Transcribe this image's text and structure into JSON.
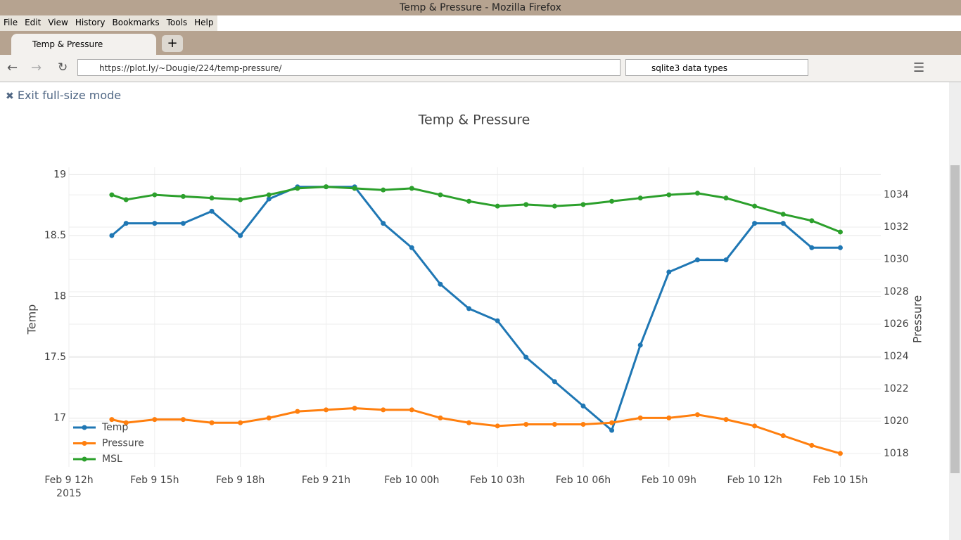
{
  "window_title": "Temp & Pressure - Mozilla Firefox",
  "menu": [
    "File",
    "Edit",
    "View",
    "History",
    "Bookmarks",
    "Tools",
    "Help"
  ],
  "tab_title": "Temp & Pressure",
  "url": "https://plot.ly/~Dougie/224/temp-pressure/",
  "search_text": "sqlite3 data types",
  "exit_link": "Exit full-size mode",
  "chart_data": {
    "type": "line",
    "title": "Temp & Pressure",
    "x_label": "",
    "y_label": "Temp",
    "y2_label": "Pressure",
    "x": [
      "2015-02-09 13:30",
      "2015-02-09 14:00",
      "2015-02-09 15:00",
      "2015-02-09 16:00",
      "2015-02-09 17:00",
      "2015-02-09 18:00",
      "2015-02-09 19:00",
      "2015-02-09 20:00",
      "2015-02-09 21:00",
      "2015-02-09 22:00",
      "2015-02-09 23:00",
      "2015-02-10 00:00",
      "2015-02-10 01:00",
      "2015-02-10 02:00",
      "2015-02-10 03:00",
      "2015-02-10 04:00",
      "2015-02-10 05:00",
      "2015-02-10 06:00",
      "2015-02-10 07:00",
      "2015-02-10 08:00",
      "2015-02-10 09:00",
      "2015-02-10 10:00",
      "2015-02-10 11:00",
      "2015-02-10 12:00",
      "2015-02-10 13:00",
      "2015-02-10 14:00",
      "2015-02-10 15:00"
    ],
    "series": [
      {
        "name": "Temp",
        "color": "#1f77b4",
        "values": [
          18.5,
          18.6,
          18.6,
          18.6,
          18.7,
          18.5,
          18.8,
          18.9,
          18.9,
          18.9,
          18.6,
          18.4,
          18.1,
          17.9,
          17.8,
          17.5,
          17.3,
          17.1,
          16.9,
          17.6,
          18.2,
          18.3,
          18.3,
          18.6,
          18.6,
          18.4,
          18.4
        ]
      },
      {
        "name": "Pressure",
        "color": "#ff7f0e",
        "axis": "y2",
        "values": [
          1020.1,
          1019.9,
          1020.1,
          1020.1,
          1019.9,
          1019.9,
          1020.2,
          1020.6,
          1020.7,
          1020.8,
          1020.7,
          1020.7,
          1020.2,
          1019.9,
          1019.7,
          1019.8,
          1019.8,
          1019.8,
          1019.9,
          1020.2,
          1020.2,
          1020.4,
          1020.1,
          1019.7,
          1019.1,
          1018.5,
          1018.0
        ]
      },
      {
        "name": "MSL",
        "color": "#2ca02c",
        "axis": "y2",
        "values": [
          1034.0,
          1033.7,
          1034.0,
          1033.9,
          1033.8,
          1033.7,
          1034.0,
          1034.4,
          1034.5,
          1034.4,
          1034.3,
          1034.4,
          1034.0,
          1033.6,
          1033.3,
          1033.4,
          1033.3,
          1033.4,
          1033.6,
          1033.8,
          1034.0,
          1034.1,
          1033.8,
          1033.3,
          1032.8,
          1032.4,
          1031.7
        ]
      }
    ],
    "xlim": [
      "2015-02-09 12:00",
      "2015-02-10 16:25"
    ],
    "xticks": [
      {
        "value": "2015-02-09 12:00",
        "label": "Feb 9 12h"
      },
      {
        "value": "2015-02-09 15:00",
        "label": "Feb 9 15h"
      },
      {
        "value": "2015-02-09 18:00",
        "label": "Feb 9 18h"
      },
      {
        "value": "2015-02-09 21:00",
        "label": "Feb 9 21h"
      },
      {
        "value": "2015-02-10 00:00",
        "label": "Feb 10 00h"
      },
      {
        "value": "2015-02-10 03:00",
        "label": "Feb 10 03h"
      },
      {
        "value": "2015-02-10 06:00",
        "label": "Feb 10 06h"
      },
      {
        "value": "2015-02-10 09:00",
        "label": "Feb 10 09h"
      },
      {
        "value": "2015-02-10 12:00",
        "label": "Feb 10 12h"
      },
      {
        "value": "2015-02-10 15:00",
        "label": "Feb 10 15h"
      }
    ],
    "x_year_label": "2015",
    "ylim": [
      16.6,
      19.06
    ],
    "yticks": [
      17,
      17.5,
      18,
      18.5,
      19
    ],
    "y2lim": [
      1017.17,
      1035.7
    ],
    "y2ticks": [
      1018,
      1020,
      1022,
      1024,
      1026,
      1028,
      1030,
      1032,
      1034
    ],
    "grid": true,
    "legend": "lower left"
  }
}
